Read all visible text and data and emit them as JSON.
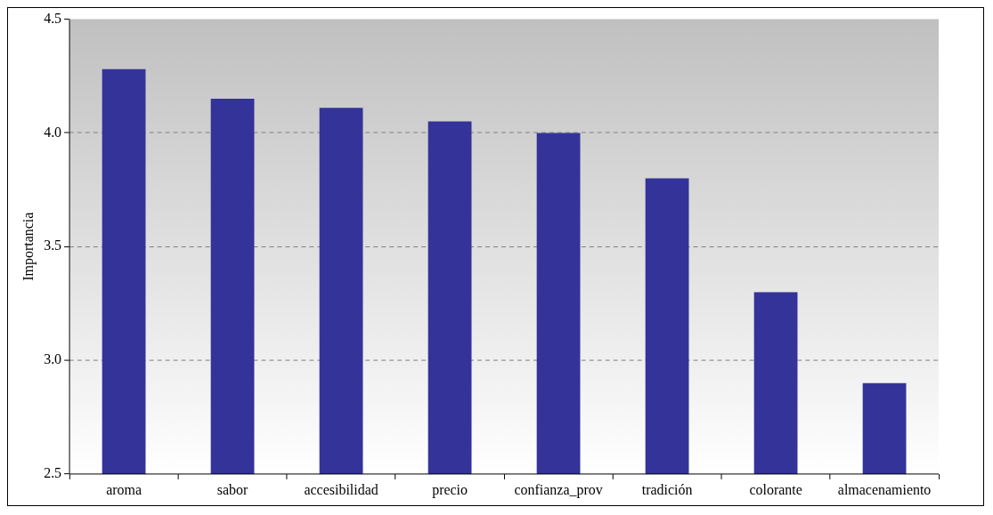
{
  "chart_data": {
    "type": "bar",
    "ylabel": "Importancia",
    "categories": [
      "aroma",
      "sabor",
      "accesibilidad",
      "precio",
      "confianza_prov",
      "tradición",
      "colorante",
      "almacenamiento"
    ],
    "values": [
      4.28,
      4.15,
      4.11,
      4.05,
      4.0,
      3.8,
      3.3,
      2.9
    ],
    "color": "#333399",
    "ylim": [
      2.5,
      4.5
    ],
    "yticks": [
      {
        "value": 2.5,
        "label": "2.5"
      },
      {
        "value": 3,
        "label": "3.0"
      },
      {
        "value": 3.5,
        "label": "3.5"
      },
      {
        "value": 4,
        "label": "4.0"
      },
      {
        "value": 4.5,
        "label": "4.5"
      }
    ],
    "grid": "y"
  }
}
